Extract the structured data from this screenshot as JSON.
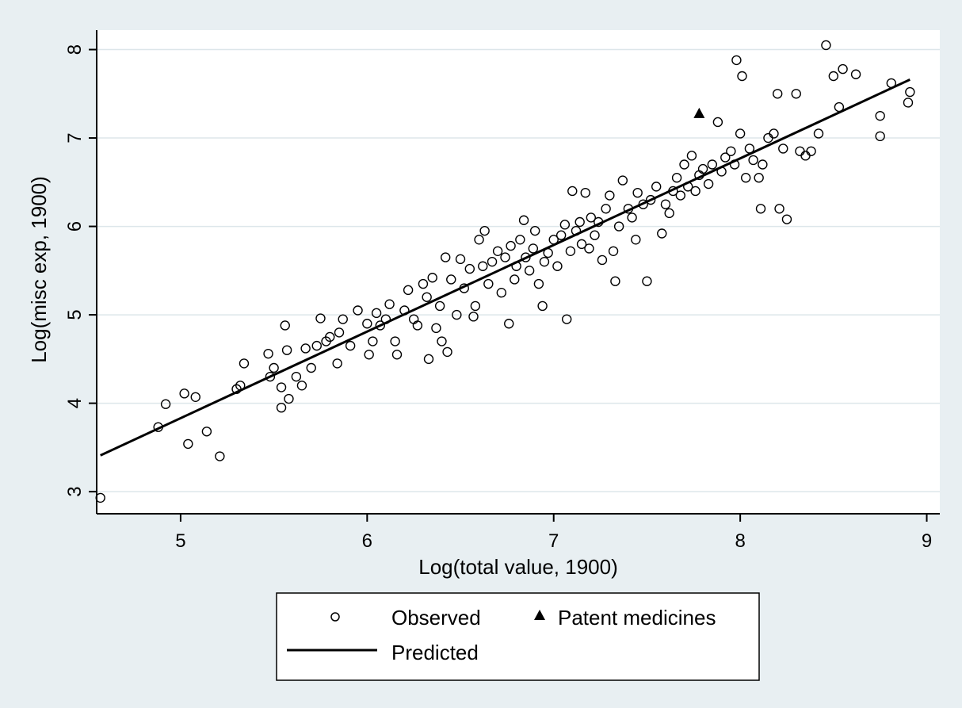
{
  "chart_data": {
    "type": "scatter",
    "xlabel": "Log(total value, 1900)",
    "ylabel": "Log(misc exp, 1900)",
    "xlim": [
      4.55,
      9.07
    ],
    "ylim": [
      2.75,
      8.22
    ],
    "x_ticks": [
      5,
      6,
      7,
      8,
      9
    ],
    "y_ticks": [
      3,
      4,
      5,
      6,
      7,
      8
    ],
    "x_tick_labels": [
      "5",
      "6",
      "7",
      "8",
      "9"
    ],
    "y_tick_labels": [
      "3",
      "4",
      "5",
      "6",
      "7",
      "8"
    ],
    "grid": "horizontal",
    "legend_position": "bottom",
    "series": [
      {
        "name": "Observed",
        "kind": "scatter",
        "marker": "hollow-circle",
        "points": [
          [
            4.57,
            2.93
          ],
          [
            4.88,
            3.73
          ],
          [
            4.92,
            3.99
          ],
          [
            5.02,
            4.11
          ],
          [
            5.04,
            3.54
          ],
          [
            5.08,
            4.07
          ],
          [
            5.14,
            3.68
          ],
          [
            5.21,
            3.4
          ],
          [
            5.3,
            4.16
          ],
          [
            5.32,
            4.2
          ],
          [
            5.34,
            4.45
          ],
          [
            5.47,
            4.56
          ],
          [
            5.48,
            4.3
          ],
          [
            5.5,
            4.4
          ],
          [
            5.54,
            4.18
          ],
          [
            5.54,
            3.95
          ],
          [
            5.56,
            4.88
          ],
          [
            5.57,
            4.6
          ],
          [
            5.58,
            4.05
          ],
          [
            5.62,
            4.3
          ],
          [
            5.65,
            4.2
          ],
          [
            5.67,
            4.62
          ],
          [
            5.7,
            4.4
          ],
          [
            5.73,
            4.65
          ],
          [
            5.75,
            4.96
          ],
          [
            5.78,
            4.7
          ],
          [
            5.8,
            4.75
          ],
          [
            5.84,
            4.45
          ],
          [
            5.85,
            4.8
          ],
          [
            5.87,
            4.95
          ],
          [
            5.91,
            4.65
          ],
          [
            5.95,
            5.05
          ],
          [
            6.0,
            4.9
          ],
          [
            6.01,
            4.55
          ],
          [
            6.03,
            4.7
          ],
          [
            6.05,
            5.02
          ],
          [
            6.07,
            4.88
          ],
          [
            6.1,
            4.95
          ],
          [
            6.12,
            5.12
          ],
          [
            6.15,
            4.7
          ],
          [
            6.16,
            4.55
          ],
          [
            6.2,
            5.05
          ],
          [
            6.22,
            5.28
          ],
          [
            6.25,
            4.95
          ],
          [
            6.27,
            4.88
          ],
          [
            6.3,
            5.35
          ],
          [
            6.32,
            5.2
          ],
          [
            6.33,
            4.5
          ],
          [
            6.35,
            5.42
          ],
          [
            6.37,
            4.85
          ],
          [
            6.39,
            5.1
          ],
          [
            6.4,
            4.7
          ],
          [
            6.42,
            5.65
          ],
          [
            6.43,
            4.58
          ],
          [
            6.45,
            5.4
          ],
          [
            6.48,
            5.0
          ],
          [
            6.5,
            5.63
          ],
          [
            6.52,
            5.3
          ],
          [
            6.55,
            5.52
          ],
          [
            6.57,
            4.98
          ],
          [
            6.58,
            5.1
          ],
          [
            6.6,
            5.85
          ],
          [
            6.62,
            5.55
          ],
          [
            6.63,
            5.95
          ],
          [
            6.65,
            5.35
          ],
          [
            6.67,
            5.6
          ],
          [
            6.7,
            5.72
          ],
          [
            6.72,
            5.25
          ],
          [
            6.74,
            5.65
          ],
          [
            6.76,
            4.9
          ],
          [
            6.77,
            5.78
          ],
          [
            6.79,
            5.4
          ],
          [
            6.8,
            5.55
          ],
          [
            6.82,
            5.85
          ],
          [
            6.84,
            6.07
          ],
          [
            6.85,
            5.65
          ],
          [
            6.87,
            5.5
          ],
          [
            6.89,
            5.75
          ],
          [
            6.9,
            5.95
          ],
          [
            6.92,
            5.35
          ],
          [
            6.94,
            5.1
          ],
          [
            6.95,
            5.6
          ],
          [
            6.97,
            5.7
          ],
          [
            7.0,
            5.85
          ],
          [
            7.02,
            5.55
          ],
          [
            7.04,
            5.9
          ],
          [
            7.06,
            6.02
          ],
          [
            7.07,
            4.95
          ],
          [
            7.09,
            5.72
          ],
          [
            7.1,
            6.4
          ],
          [
            7.12,
            5.95
          ],
          [
            7.14,
            6.05
          ],
          [
            7.15,
            5.8
          ],
          [
            7.17,
            6.38
          ],
          [
            7.19,
            5.75
          ],
          [
            7.2,
            6.1
          ],
          [
            7.22,
            5.9
          ],
          [
            7.24,
            6.05
          ],
          [
            7.26,
            5.62
          ],
          [
            7.28,
            6.2
          ],
          [
            7.3,
            6.35
          ],
          [
            7.32,
            5.72
          ],
          [
            7.33,
            5.38
          ],
          [
            7.35,
            6.0
          ],
          [
            7.37,
            6.52
          ],
          [
            7.4,
            6.2
          ],
          [
            7.42,
            6.1
          ],
          [
            7.44,
            5.85
          ],
          [
            7.45,
            6.38
          ],
          [
            7.48,
            6.25
          ],
          [
            7.5,
            5.38
          ],
          [
            7.52,
            6.3
          ],
          [
            7.55,
            6.45
          ],
          [
            7.58,
            5.92
          ],
          [
            7.6,
            6.25
          ],
          [
            7.62,
            6.15
          ],
          [
            7.64,
            6.4
          ],
          [
            7.66,
            6.55
          ],
          [
            7.68,
            6.35
          ],
          [
            7.7,
            6.7
          ],
          [
            7.72,
            6.45
          ],
          [
            7.74,
            6.8
          ],
          [
            7.76,
            6.4
          ],
          [
            7.78,
            6.58
          ],
          [
            7.8,
            6.65
          ],
          [
            7.83,
            6.48
          ],
          [
            7.85,
            6.7
          ],
          [
            7.88,
            7.18
          ],
          [
            7.9,
            6.62
          ],
          [
            7.92,
            6.78
          ],
          [
            7.95,
            6.85
          ],
          [
            7.97,
            6.7
          ],
          [
            7.98,
            7.88
          ],
          [
            8.0,
            7.05
          ],
          [
            8.01,
            7.7
          ],
          [
            8.03,
            6.55
          ],
          [
            8.05,
            6.88
          ],
          [
            8.07,
            6.75
          ],
          [
            8.1,
            6.55
          ],
          [
            8.11,
            6.2
          ],
          [
            8.12,
            6.7
          ],
          [
            8.15,
            7.0
          ],
          [
            8.18,
            7.05
          ],
          [
            8.2,
            7.5
          ],
          [
            8.21,
            6.2
          ],
          [
            8.23,
            6.88
          ],
          [
            8.25,
            6.08
          ],
          [
            8.3,
            7.5
          ],
          [
            8.32,
            6.85
          ],
          [
            8.35,
            6.8
          ],
          [
            8.38,
            6.85
          ],
          [
            8.42,
            7.05
          ],
          [
            8.46,
            8.05
          ],
          [
            8.5,
            7.7
          ],
          [
            8.53,
            7.35
          ],
          [
            8.55,
            7.78
          ],
          [
            8.62,
            7.72
          ],
          [
            8.75,
            7.25
          ],
          [
            8.75,
            7.02
          ],
          [
            8.81,
            7.62
          ],
          [
            8.9,
            7.4
          ],
          [
            8.91,
            7.52
          ]
        ]
      },
      {
        "name": "Patent medicines",
        "kind": "scatter",
        "marker": "filled-triangle",
        "points": [
          [
            7.78,
            7.28
          ]
        ]
      },
      {
        "name": "Predicted",
        "kind": "line",
        "points": [
          [
            4.57,
            3.41
          ],
          [
            8.91,
            7.66
          ]
        ]
      }
    ],
    "legend": {
      "entries": [
        "Observed",
        "Patent medicines",
        "Predicted"
      ]
    }
  },
  "colors": {
    "background": "#e8eff2",
    "plot_background": "#ffffff",
    "grid": "#dde6ea",
    "ink": "#000000"
  }
}
